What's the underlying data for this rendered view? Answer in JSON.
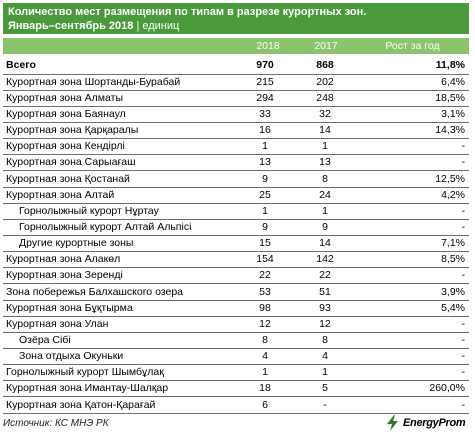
{
  "header": {
    "title": "Количество мест размещения по типам в разрезе курортных зон.",
    "period": "Январь–сентябрь 2018",
    "unit": "единиц"
  },
  "columns": [
    "2018",
    "2017",
    "Рост за год"
  ],
  "rows": [
    {
      "name": "Всего",
      "v2018": "970",
      "v2017": "868",
      "growth": "11,8%",
      "total": true
    },
    {
      "name": "Курортная зона Шортанды-Бурабай",
      "v2018": "215",
      "v2017": "202",
      "growth": "6,4%"
    },
    {
      "name": "Курортная зона Алматы",
      "v2018": "294",
      "v2017": "248",
      "growth": "18,5%"
    },
    {
      "name": "Курортная зона Баянаул",
      "v2018": "33",
      "v2017": "32",
      "growth": "3,1%"
    },
    {
      "name": "Курортная зона Қарқаралы",
      "v2018": "16",
      "v2017": "14",
      "growth": "14,3%"
    },
    {
      "name": "Курортная зона Кендірлі",
      "v2018": "1",
      "v2017": "1",
      "growth": "-"
    },
    {
      "name": "Курортная зона Сарыағаш",
      "v2018": "13",
      "v2017": "13",
      "growth": "-"
    },
    {
      "name": "Курортная зона Қостанай",
      "v2018": "9",
      "v2017": "8",
      "growth": "12,5%"
    },
    {
      "name": "Курортная зона Алтай",
      "v2018": "25",
      "v2017": "24",
      "growth": "4,2%"
    },
    {
      "name": "Горнолыжный курорт Нұртау",
      "v2018": "1",
      "v2017": "1",
      "growth": "-",
      "indent": true
    },
    {
      "name": "Горнолыжный курорт Алтай Альпісі",
      "v2018": "9",
      "v2017": "9",
      "growth": "-",
      "indent": true
    },
    {
      "name": "Другие курортные зоны",
      "v2018": "15",
      "v2017": "14",
      "growth": "7,1%",
      "indent": true
    },
    {
      "name": "Курортная зона Алакөл",
      "v2018": "154",
      "v2017": "142",
      "growth": "8,5%"
    },
    {
      "name": "Курортная зона Зеренді",
      "v2018": "22",
      "v2017": "22",
      "growth": "-"
    },
    {
      "name": "Зона побережья Балхашского озера",
      "v2018": "53",
      "v2017": "51",
      "growth": "3,9%"
    },
    {
      "name": "Курортная зона Бұқтырма",
      "v2018": "98",
      "v2017": "93",
      "growth": "5,4%"
    },
    {
      "name": "Курортная зона Улан",
      "v2018": "12",
      "v2017": "12",
      "growth": "-"
    },
    {
      "name": "Озёра Сібі",
      "v2018": "8",
      "v2017": "8",
      "growth": "-",
      "indent": true
    },
    {
      "name": "Зона отдыха Окуньки",
      "v2018": "4",
      "v2017": "4",
      "growth": "-",
      "indent": true
    },
    {
      "name": "Горнолыжный курорт Шымбұлақ",
      "v2018": "1",
      "v2017": "1",
      "growth": "-"
    },
    {
      "name": "Курортная зона Имантау-Шалқар",
      "v2018": "18",
      "v2017": "5",
      "growth": "260,0%"
    },
    {
      "name": "Курортная зона Қатон-Қарағай",
      "v2018": "6",
      "v2017": "-",
      "growth": "-"
    }
  ],
  "footer": {
    "source": "Источник: КС МНЭ РК",
    "logo_text": "EnergyProm"
  },
  "colors": {
    "header_bg": "#4a9a3c",
    "colhead_bg": "#8cc46e"
  }
}
